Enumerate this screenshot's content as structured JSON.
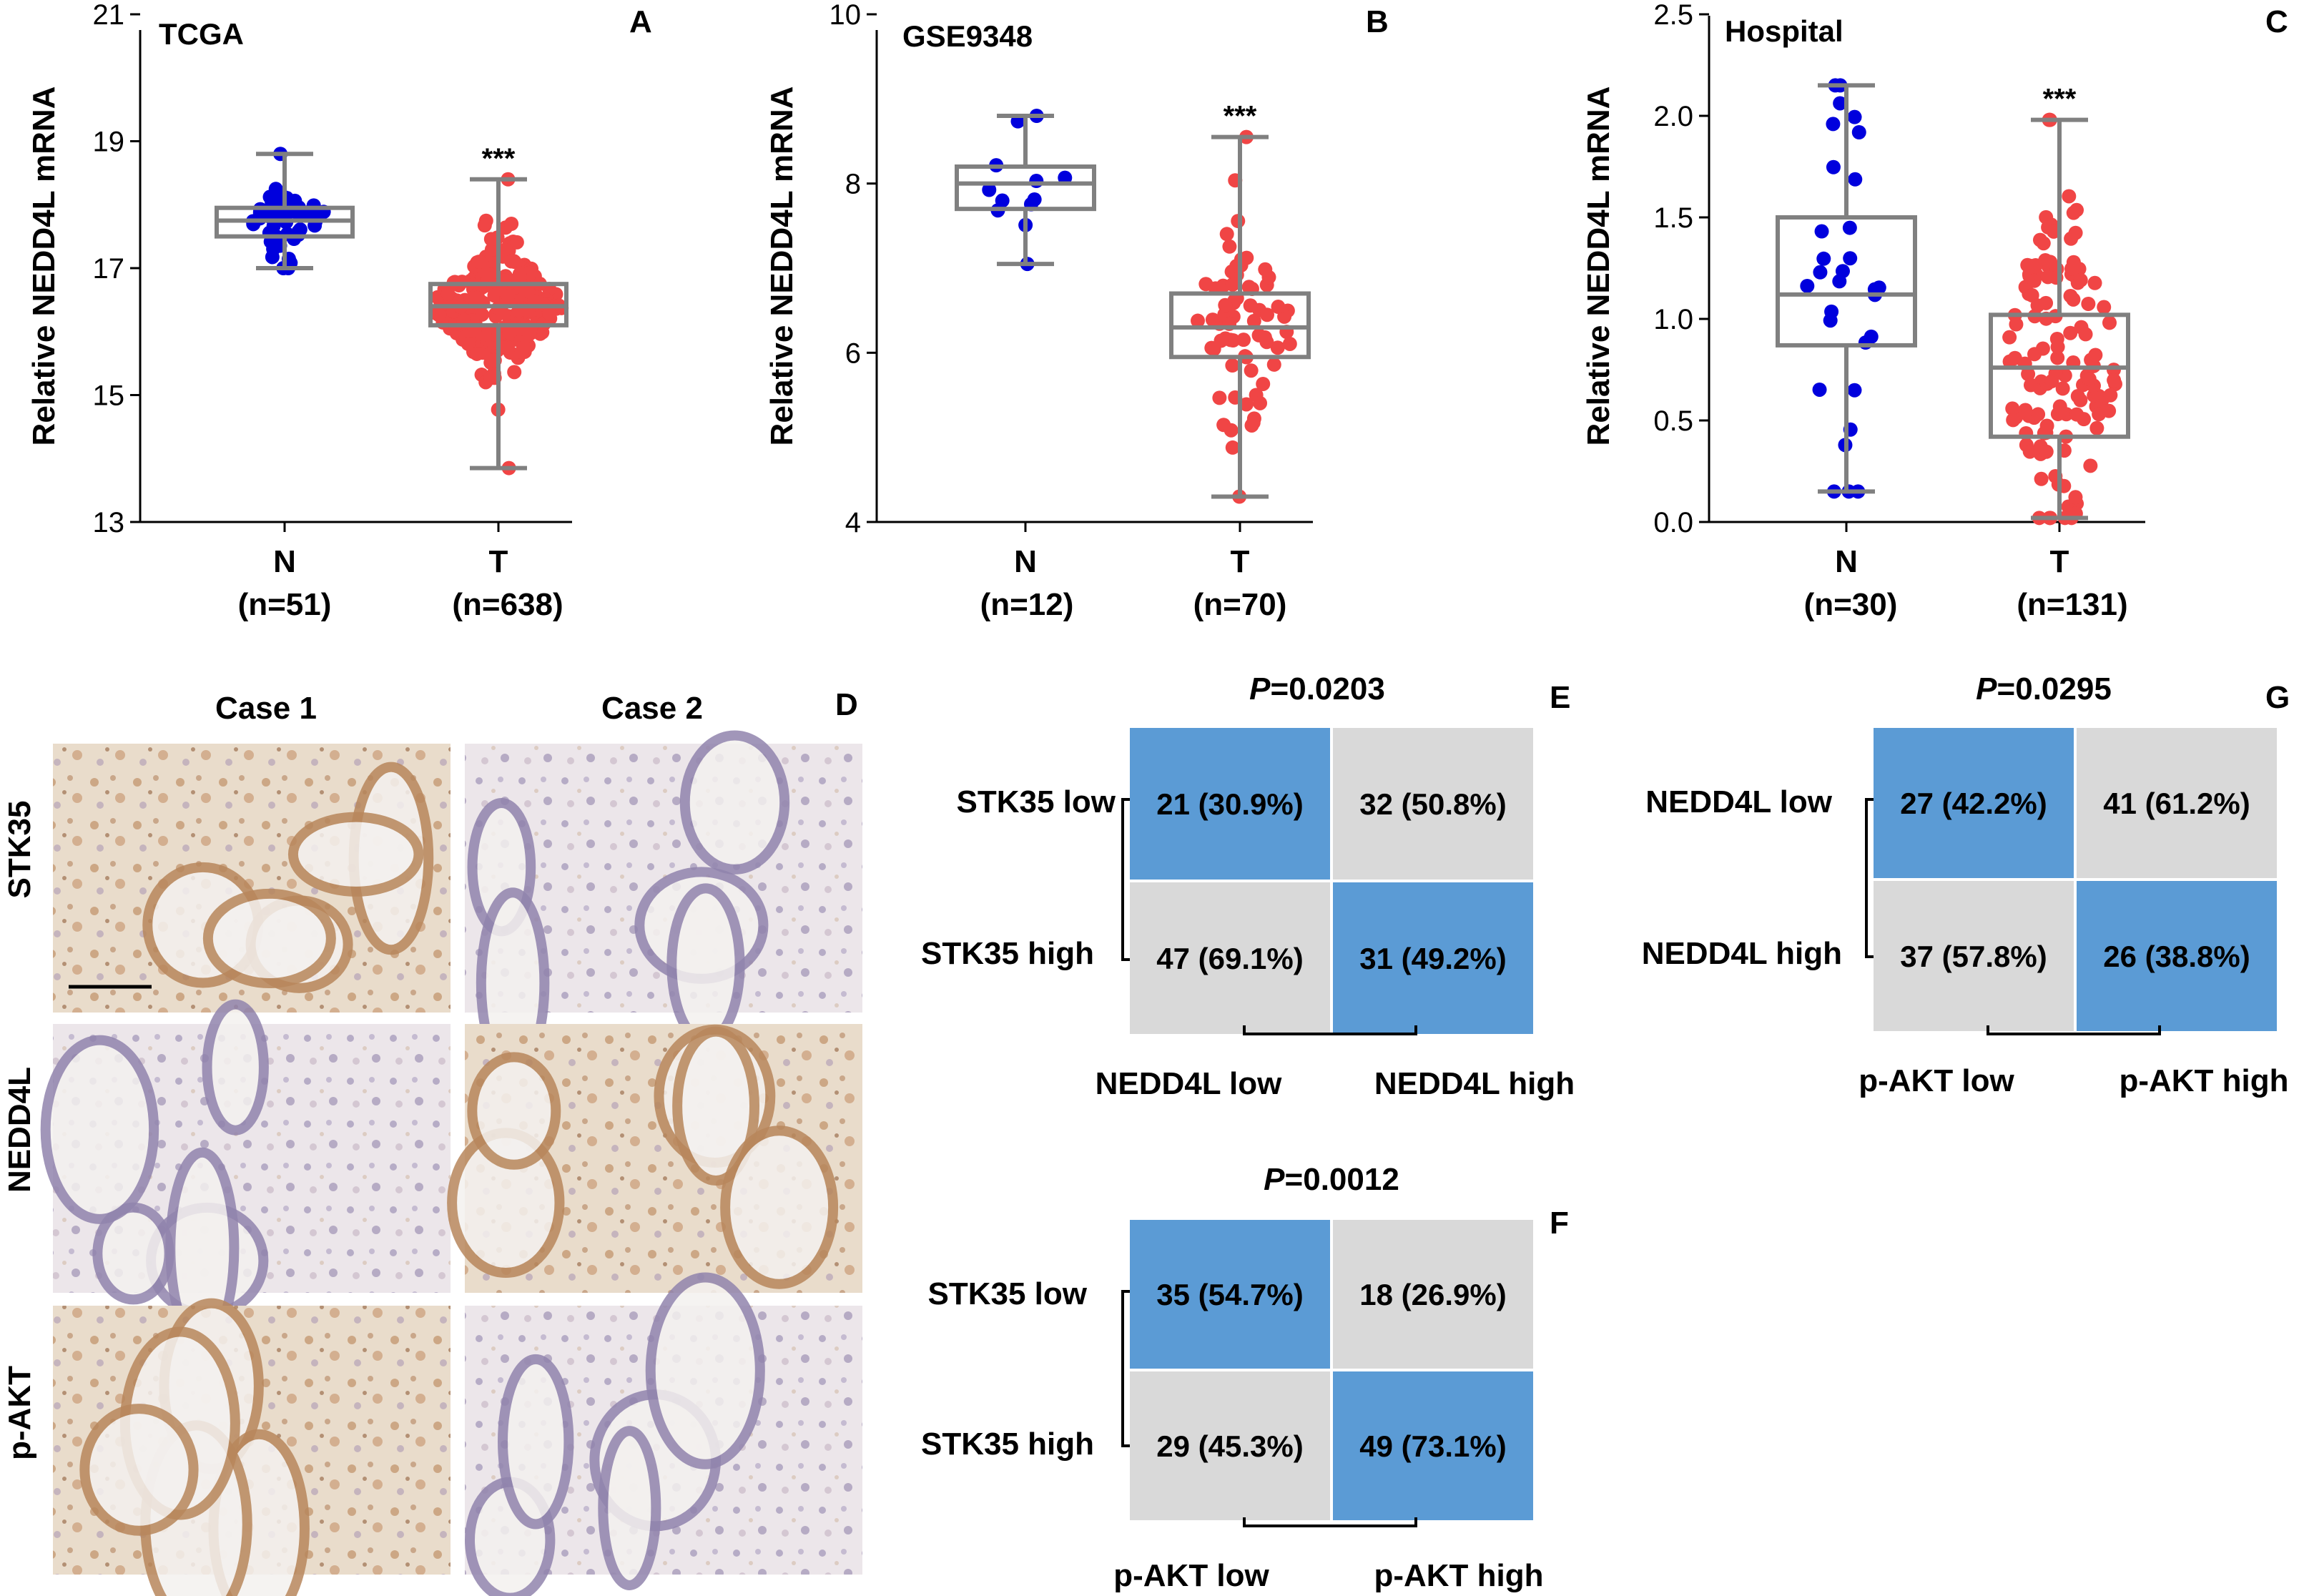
{
  "colors": {
    "normal": "#0000dd",
    "tumor": "#f04545",
    "box": "#808080",
    "cell_blue": "#5b9bd5",
    "cell_gray": "#d9d9d9",
    "tissue_bg": "#e8dccd",
    "tissue_brown": "#b07848",
    "tissue_purple": "#8c7ca8"
  },
  "chart_data": [
    {
      "panel": "A",
      "type": "box-scatter",
      "title": "TCGA",
      "ylabel": "Relative NEDD4L mRNA",
      "ylim": [
        13,
        21
      ],
      "yticks": [
        "13",
        "15",
        "17",
        "19",
        "21"
      ],
      "groups": [
        {
          "name": "N",
          "n_label": "(n=51)",
          "n": 51,
          "min": 17.0,
          "q1": 17.5,
          "median": 17.75,
          "q3": 17.95,
          "max": 18.8,
          "color": "normal"
        },
        {
          "name": "T",
          "n_label": "(n=638)",
          "n": 638,
          "min": 13.85,
          "q1": 16.1,
          "median": 16.4,
          "q3": 16.75,
          "max": 18.4,
          "color": "tumor"
        }
      ],
      "significance": "***"
    },
    {
      "panel": "B",
      "type": "box-scatter",
      "title": "GSE9348",
      "ylabel": "Relative NEDD4L mRNA",
      "ylim": [
        4,
        10
      ],
      "yticks": [
        "4",
        "6",
        "8",
        "10"
      ],
      "groups": [
        {
          "name": "N",
          "n_label": "(n=12)",
          "n": 12,
          "min": 7.05,
          "q1": 7.7,
          "median": 8.0,
          "q3": 8.2,
          "max": 8.8,
          "color": "normal"
        },
        {
          "name": "T",
          "n_label": "(n=70)",
          "n": 70,
          "min": 4.3,
          "q1": 5.95,
          "median": 6.3,
          "q3": 6.7,
          "max": 8.55,
          "color": "tumor"
        }
      ],
      "significance": "***"
    },
    {
      "panel": "C",
      "type": "box-scatter",
      "title": "Hospital",
      "ylabel": "Relative NEDD4L mRNA",
      "ylim": [
        0.0,
        2.5
      ],
      "yticks": [
        "0.0",
        "0.5",
        "1.0",
        "1.5",
        "2.0",
        "2.5"
      ],
      "groups": [
        {
          "name": "N",
          "n_label": "(n=30)",
          "n": 30,
          "min": 0.15,
          "q1": 0.87,
          "median": 1.12,
          "q3": 1.5,
          "max": 2.15,
          "color": "normal"
        },
        {
          "name": "T",
          "n_label": "(n=131)",
          "n": 131,
          "min": 0.02,
          "q1": 0.42,
          "median": 0.76,
          "q3": 1.02,
          "max": 1.98,
          "color": "tumor"
        }
      ],
      "significance": "***"
    },
    {
      "panel": "E",
      "type": "table",
      "p_italic": "P",
      "p_value": "=0.0203",
      "row_labels": [
        "STK35 low",
        "STK35 high"
      ],
      "col_labels": [
        "NEDD4L low",
        "NEDD4L high"
      ],
      "cells": [
        [
          "21 (30.9%)",
          "32 (50.8%)"
        ],
        [
          "47 (69.1%)",
          "31 (49.2%)"
        ]
      ],
      "highlight": [
        [
          true,
          false
        ],
        [
          false,
          true
        ]
      ]
    },
    {
      "panel": "F",
      "type": "table",
      "p_italic": "P",
      "p_value": "=0.0012",
      "row_labels": [
        "STK35 low",
        "STK35 high"
      ],
      "col_labels": [
        "p-AKT low",
        "p-AKT high"
      ],
      "cells": [
        [
          "35 (54.7%)",
          "18 (26.9%)"
        ],
        [
          "29 (45.3%)",
          "49 (73.1%)"
        ]
      ],
      "highlight": [
        [
          true,
          false
        ],
        [
          false,
          true
        ]
      ]
    },
    {
      "panel": "G",
      "type": "table",
      "p_italic": "P",
      "p_value": "=0.0295",
      "row_labels": [
        "NEDD4L low",
        "NEDD4L high"
      ],
      "col_labels": [
        "p-AKT low",
        "p-AKT high"
      ],
      "cells": [
        [
          "27 (42.2%)",
          "41 (61.2%)"
        ],
        [
          "37 (57.8%)",
          "26 (38.8%)"
        ]
      ],
      "highlight": [
        [
          true,
          false
        ],
        [
          false,
          true
        ]
      ]
    }
  ],
  "ihc": {
    "panel": "D",
    "columns": [
      "Case 1",
      "Case 2"
    ],
    "rows": [
      "STK35",
      "NEDD4L",
      "p-AKT"
    ],
    "tints": [
      [
        "brown",
        "purple"
      ],
      [
        "purple",
        "brown"
      ],
      [
        "brown",
        "purple"
      ]
    ]
  }
}
